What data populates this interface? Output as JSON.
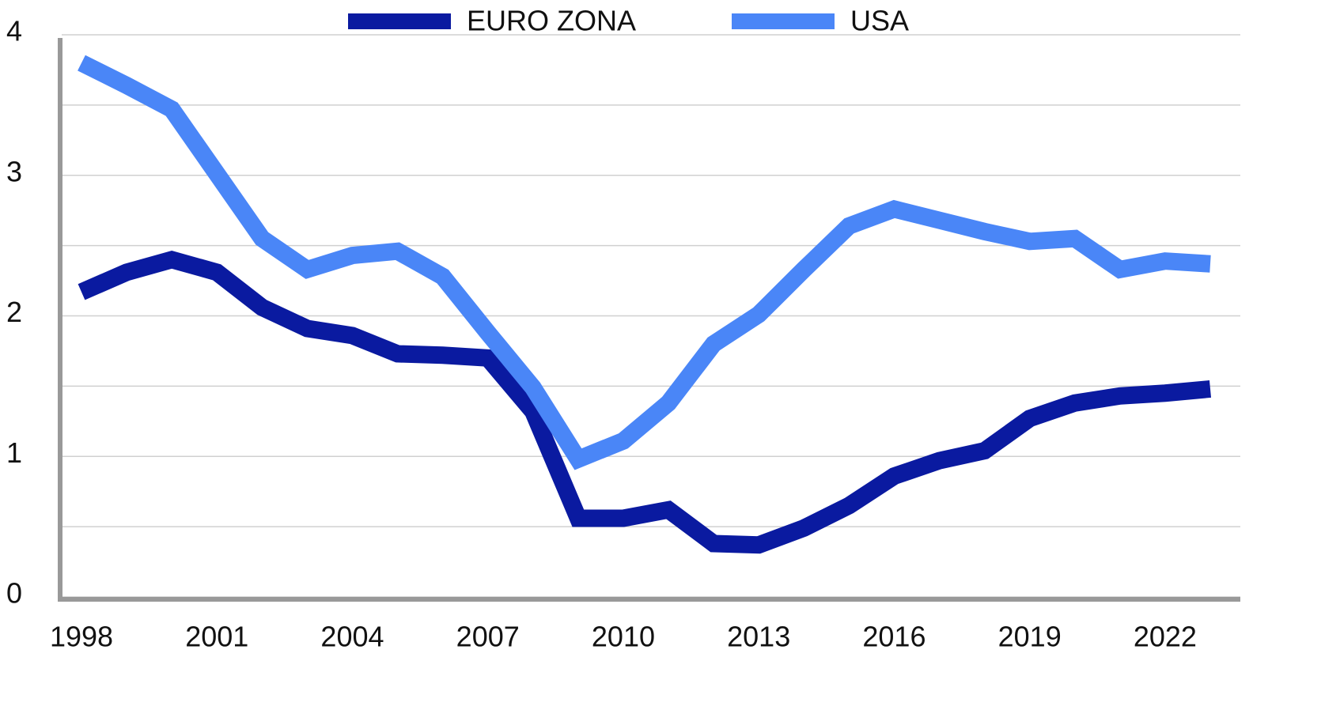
{
  "chart_data": {
    "type": "line",
    "categories": [
      "1998",
      null,
      null,
      "2001",
      null,
      null,
      "2004",
      null,
      null,
      "2007",
      null,
      null,
      "2010",
      null,
      null,
      "2013",
      null,
      null,
      "2016",
      null,
      null,
      "2019",
      null,
      null,
      "2022",
      null
    ],
    "series": [
      {
        "name": "EURO ZONA",
        "color": "#0a1aa0",
        "values": [
          2.17,
          2.31,
          2.4,
          2.31,
          2.06,
          1.91,
          1.86,
          1.73,
          1.72,
          1.7,
          1.32,
          0.56,
          0.56,
          0.62,
          0.38,
          0.37,
          0.49,
          0.65,
          0.86,
          0.97,
          1.04,
          1.27,
          1.38,
          1.43,
          1.45,
          1.48
        ]
      },
      {
        "name": "USA",
        "color": "#4a86f7",
        "values": [
          3.8,
          3.64,
          3.47,
          3.01,
          2.55,
          2.33,
          2.43,
          2.46,
          2.28,
          1.88,
          1.49,
          0.98,
          1.11,
          1.38,
          1.8,
          2.01,
          2.33,
          2.64,
          2.76,
          2.68,
          2.6,
          2.53,
          2.55,
          2.33,
          2.39,
          2.37
        ]
      }
    ],
    "ylim": [
      0,
      4
    ],
    "yticks": [
      0,
      1,
      2,
      3,
      4
    ],
    "y_minor_gridlines": [
      0.5,
      1.5,
      2.5,
      3.5
    ],
    "grid": true,
    "legend": "top"
  }
}
